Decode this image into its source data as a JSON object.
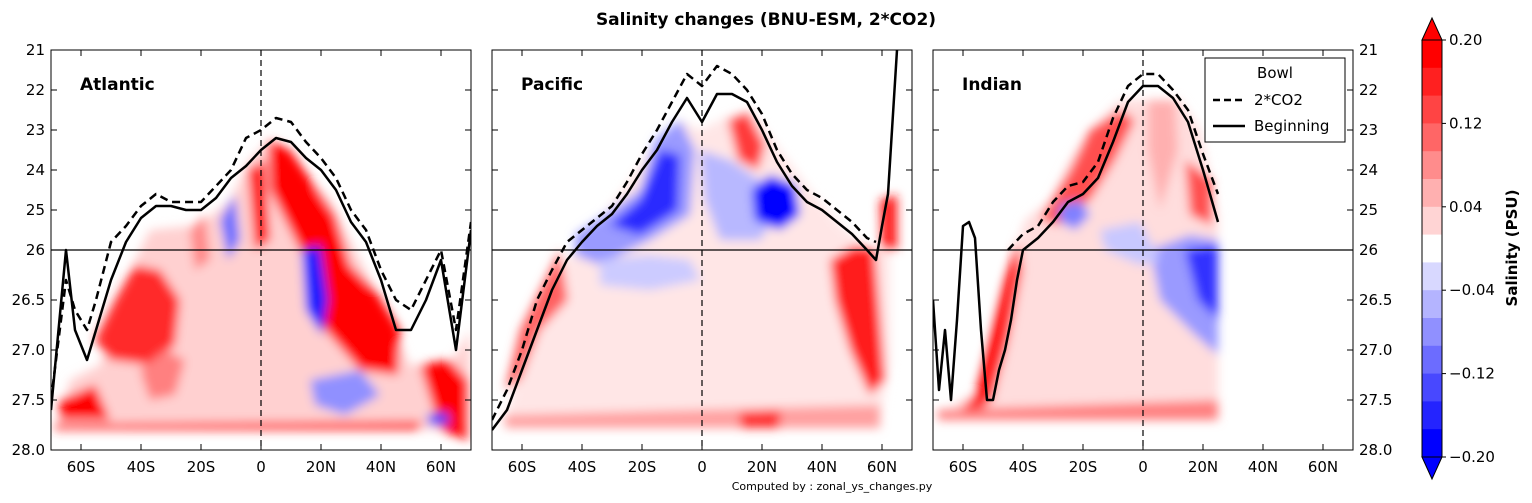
{
  "figure": {
    "title": "Salinity changes (BNU-ESM, 2*CO2)",
    "footer": "Computed by : zonal_ys_changes.py",
    "colorbar": {
      "label": "Salinity (PSU)",
      "tick_labels": [
        "0.20",
        "0.12",
        "0.04",
        "−0.04",
        "−0.12",
        "−0.20"
      ]
    }
  },
  "chart_data": [
    {
      "type": "heatmap",
      "title": "Atlantic",
      "xlabel": "",
      "ylabel": "",
      "x_tick_labels": [
        "60S",
        "40S",
        "20S",
        "0",
        "20N",
        "40N",
        "60N"
      ],
      "x_ticks": [
        -60,
        -40,
        -20,
        0,
        20,
        40,
        60
      ],
      "xlim": [
        -70,
        70
      ],
      "y_upper_tick_labels": [
        "21",
        "22",
        "23",
        "24",
        "25",
        "26"
      ],
      "y_upper_ticks": [
        21,
        22,
        23,
        24,
        25,
        26
      ],
      "y_lower_tick_labels": [
        "26",
        "26.5",
        "27.0",
        "27.5",
        "28.0"
      ],
      "y_lower_ticks": [
        26,
        26.5,
        27.0,
        27.5,
        28.0
      ],
      "ylim_upper": [
        21,
        26
      ],
      "ylim_lower": [
        26,
        28
      ],
      "y_axis_side": "left",
      "colorbar_range": [
        -0.2,
        0.2
      ],
      "series": [
        {
          "name": "Beginning",
          "style": "solid",
          "x": [
            -70,
            -65,
            -62,
            -58,
            -55,
            -50,
            -45,
            -40,
            -35,
            -30,
            -25,
            -20,
            -15,
            -10,
            -5,
            0,
            5,
            10,
            15,
            20,
            25,
            30,
            35,
            40,
            45,
            50,
            55,
            60,
            65,
            70
          ],
          "y": [
            27.6,
            26.0,
            26.8,
            27.1,
            26.8,
            26.3,
            25.8,
            25.2,
            24.9,
            24.9,
            25.0,
            25.0,
            24.7,
            24.2,
            23.9,
            23.5,
            23.2,
            23.3,
            23.7,
            24.0,
            24.5,
            25.3,
            25.8,
            26.3,
            26.8,
            26.8,
            26.5,
            26.1,
            27.0,
            25.5
          ]
        },
        {
          "name": "2*CO2",
          "style": "dashed",
          "x": [
            -70,
            -65,
            -62,
            -58,
            -55,
            -50,
            -45,
            -40,
            -35,
            -30,
            -25,
            -20,
            -15,
            -10,
            -5,
            0,
            5,
            10,
            15,
            20,
            25,
            30,
            35,
            40,
            45,
            50,
            55,
            60,
            65,
            70
          ],
          "y": [
            27.5,
            26.3,
            26.6,
            26.8,
            26.5,
            25.8,
            25.4,
            24.9,
            24.6,
            24.8,
            24.8,
            24.8,
            24.4,
            24.0,
            23.2,
            23.0,
            22.7,
            22.8,
            23.3,
            23.7,
            24.2,
            25.0,
            25.5,
            26.2,
            26.5,
            26.6,
            26.3,
            26.0,
            26.8,
            25.3
          ]
        }
      ]
    },
    {
      "type": "heatmap",
      "title": "Pacific",
      "xlabel": "",
      "ylabel": "",
      "x_tick_labels": [
        "60S",
        "40S",
        "20S",
        "0",
        "20N",
        "40N",
        "60N"
      ],
      "x_ticks": [
        -60,
        -40,
        -20,
        0,
        20,
        40,
        60
      ],
      "xlim": [
        -70,
        70
      ],
      "ylim_upper": [
        21,
        26
      ],
      "ylim_lower": [
        26,
        28
      ],
      "colorbar_range": [
        -0.2,
        0.2
      ],
      "series": [
        {
          "name": "Beginning",
          "style": "solid",
          "x": [
            -70,
            -65,
            -60,
            -55,
            -50,
            -45,
            -40,
            -35,
            -30,
            -25,
            -20,
            -15,
            -10,
            -5,
            0,
            5,
            10,
            15,
            20,
            25,
            30,
            35,
            40,
            45,
            50,
            55,
            58,
            60,
            62,
            65
          ],
          "y": [
            27.8,
            27.6,
            27.2,
            26.8,
            26.4,
            26.1,
            25.8,
            25.4,
            25.1,
            24.6,
            24.0,
            23.5,
            22.8,
            22.2,
            22.8,
            22.1,
            22.1,
            22.3,
            23.0,
            23.8,
            24.4,
            24.8,
            25.0,
            25.3,
            25.6,
            26.0,
            26.1,
            25.4,
            24.6,
            21.0
          ]
        },
        {
          "name": "2*CO2",
          "style": "dashed",
          "x": [
            -70,
            -65,
            -60,
            -55,
            -50,
            -45,
            -40,
            -35,
            -30,
            -25,
            -20,
            -15,
            -10,
            -5,
            0,
            5,
            10,
            15,
            20,
            25,
            30,
            35,
            40,
            45,
            50,
            55,
            58
          ],
          "y": [
            27.7,
            27.4,
            27.0,
            26.5,
            26.2,
            25.8,
            25.5,
            25.2,
            24.9,
            24.3,
            23.6,
            23.0,
            22.3,
            21.6,
            21.9,
            21.4,
            21.6,
            22.0,
            22.6,
            23.5,
            24.1,
            24.5,
            24.7,
            25.0,
            25.3,
            25.7,
            25.8
          ]
        }
      ]
    },
    {
      "type": "heatmap",
      "title": "Indian",
      "xlabel": "",
      "ylabel": "",
      "x_tick_labels": [
        "60S",
        "40S",
        "20S",
        "0",
        "20N",
        "40N",
        "60N"
      ],
      "x_ticks": [
        -60,
        -40,
        -20,
        0,
        20,
        40,
        60
      ],
      "xlim": [
        -70,
        70
      ],
      "y_upper_tick_labels": [
        "21",
        "22",
        "23",
        "24",
        "25",
        "26"
      ],
      "y_lower_tick_labels": [
        "26",
        "26.5",
        "27.0",
        "27.5",
        "28.0"
      ],
      "ylim_upper": [
        21,
        26
      ],
      "ylim_lower": [
        26,
        28
      ],
      "y_axis_side": "right",
      "colorbar_range": [
        -0.2,
        0.2
      ],
      "legend": {
        "title": "Bowl",
        "entries": [
          "2*CO2",
          "Beginning"
        ],
        "position": "top-right"
      },
      "series": [
        {
          "name": "Beginning",
          "style": "solid",
          "x": [
            -70,
            -68,
            -66,
            -64,
            -62,
            -60,
            -58,
            -56,
            -54,
            -52,
            -50,
            -48,
            -46,
            -44,
            -42,
            -40,
            -35,
            -30,
            -25,
            -20,
            -15,
            -10,
            -5,
            0,
            5,
            10,
            15,
            20,
            25
          ],
          "y": [
            26.5,
            27.4,
            26.8,
            27.5,
            26.7,
            25.4,
            25.3,
            25.7,
            26.8,
            27.5,
            27.5,
            27.2,
            27.0,
            26.7,
            26.3,
            26.0,
            25.7,
            25.3,
            24.8,
            24.6,
            24.2,
            23.3,
            22.3,
            21.9,
            21.9,
            22.2,
            22.8,
            24.0,
            25.3
          ]
        },
        {
          "name": "2*CO2",
          "style": "dashed",
          "x": [
            -45,
            -40,
            -35,
            -30,
            -25,
            -20,
            -15,
            -10,
            -5,
            0,
            5,
            10,
            15,
            20,
            25
          ],
          "y": [
            26.0,
            25.6,
            25.4,
            24.8,
            24.4,
            24.3,
            23.8,
            22.7,
            21.9,
            21.6,
            21.6,
            22.0,
            22.5,
            23.6,
            24.6
          ]
        }
      ]
    }
  ]
}
